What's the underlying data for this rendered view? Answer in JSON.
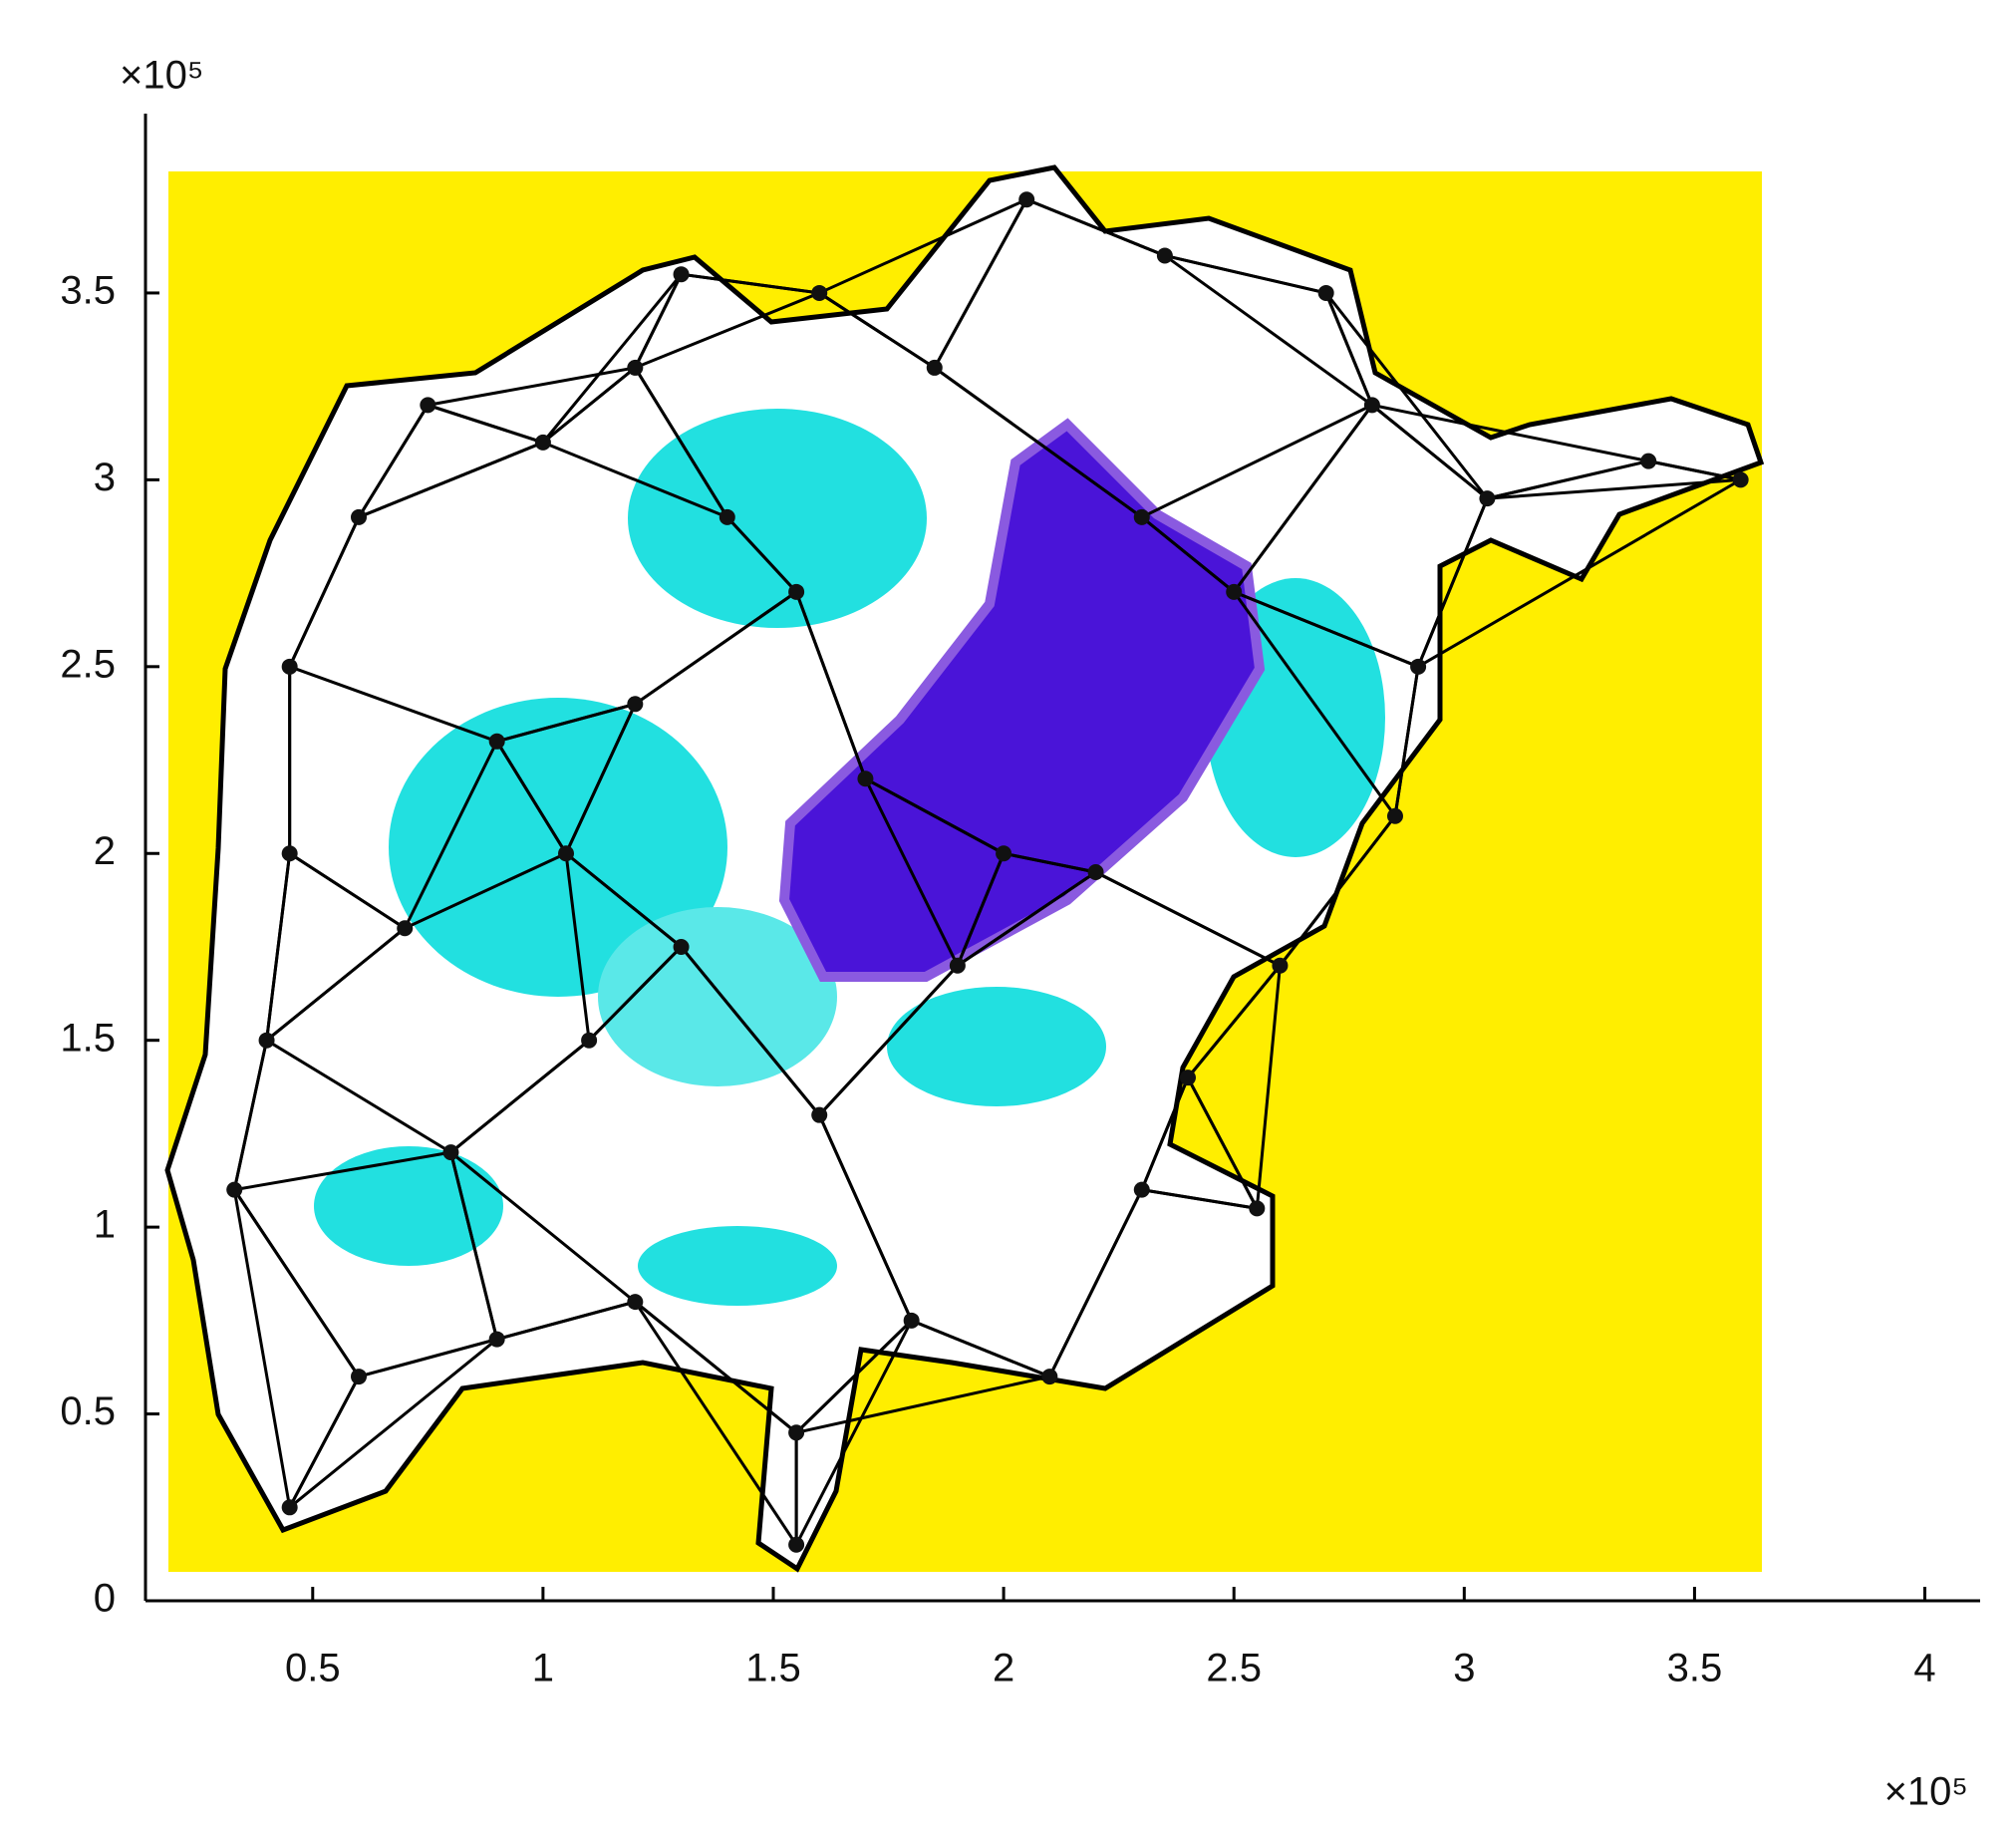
{
  "chart_data": {
    "type": "scatter",
    "x_exponent_label": "×10⁵",
    "y_exponent_label": "×10⁵",
    "xlim": [
      0.137,
      4.12
    ],
    "ylim": [
      0,
      3.98
    ],
    "xticks": [
      0.5,
      1,
      1.5,
      2,
      2.5,
      3,
      3.5,
      4
    ],
    "yticks": [
      0,
      0.5,
      1,
      1.5,
      2,
      2.5,
      3,
      3.5
    ],
    "color": "#111111",
    "x": [
      0.33,
      0.4,
      0.45,
      0.45,
      0.6,
      0.75,
      1.0,
      1.2,
      1.3,
      1.6,
      1.85,
      2.05,
      2.35,
      2.7,
      2.8,
      3.05,
      3.4,
      3.6,
      2.9,
      2.85,
      2.6,
      2.4,
      2.3,
      2.55,
      2.1,
      1.8,
      1.55,
      1.55,
      1.2,
      0.9,
      0.6,
      0.45,
      0.8,
      1.1,
      1.3,
      1.05,
      1.2,
      1.55,
      1.4,
      1.7,
      2.0,
      2.3,
      2.5,
      1.9,
      2.2,
      0.9,
      0.7,
      1.6
    ],
    "y": [
      1.1,
      1.5,
      2.0,
      2.5,
      2.9,
      3.2,
      3.1,
      3.3,
      3.55,
      3.5,
      3.3,
      3.75,
      3.6,
      3.5,
      3.2,
      2.95,
      3.05,
      3.0,
      2.5,
      2.1,
      1.7,
      1.4,
      1.1,
      1.05,
      0.6,
      0.75,
      0.45,
      0.15,
      0.8,
      0.7,
      0.6,
      0.25,
      1.2,
      1.5,
      1.75,
      2.0,
      2.4,
      2.7,
      2.9,
      2.2,
      2.0,
      2.9,
      2.7,
      1.7,
      1.95,
      2.3,
      1.8,
      1.3
    ]
  }
}
